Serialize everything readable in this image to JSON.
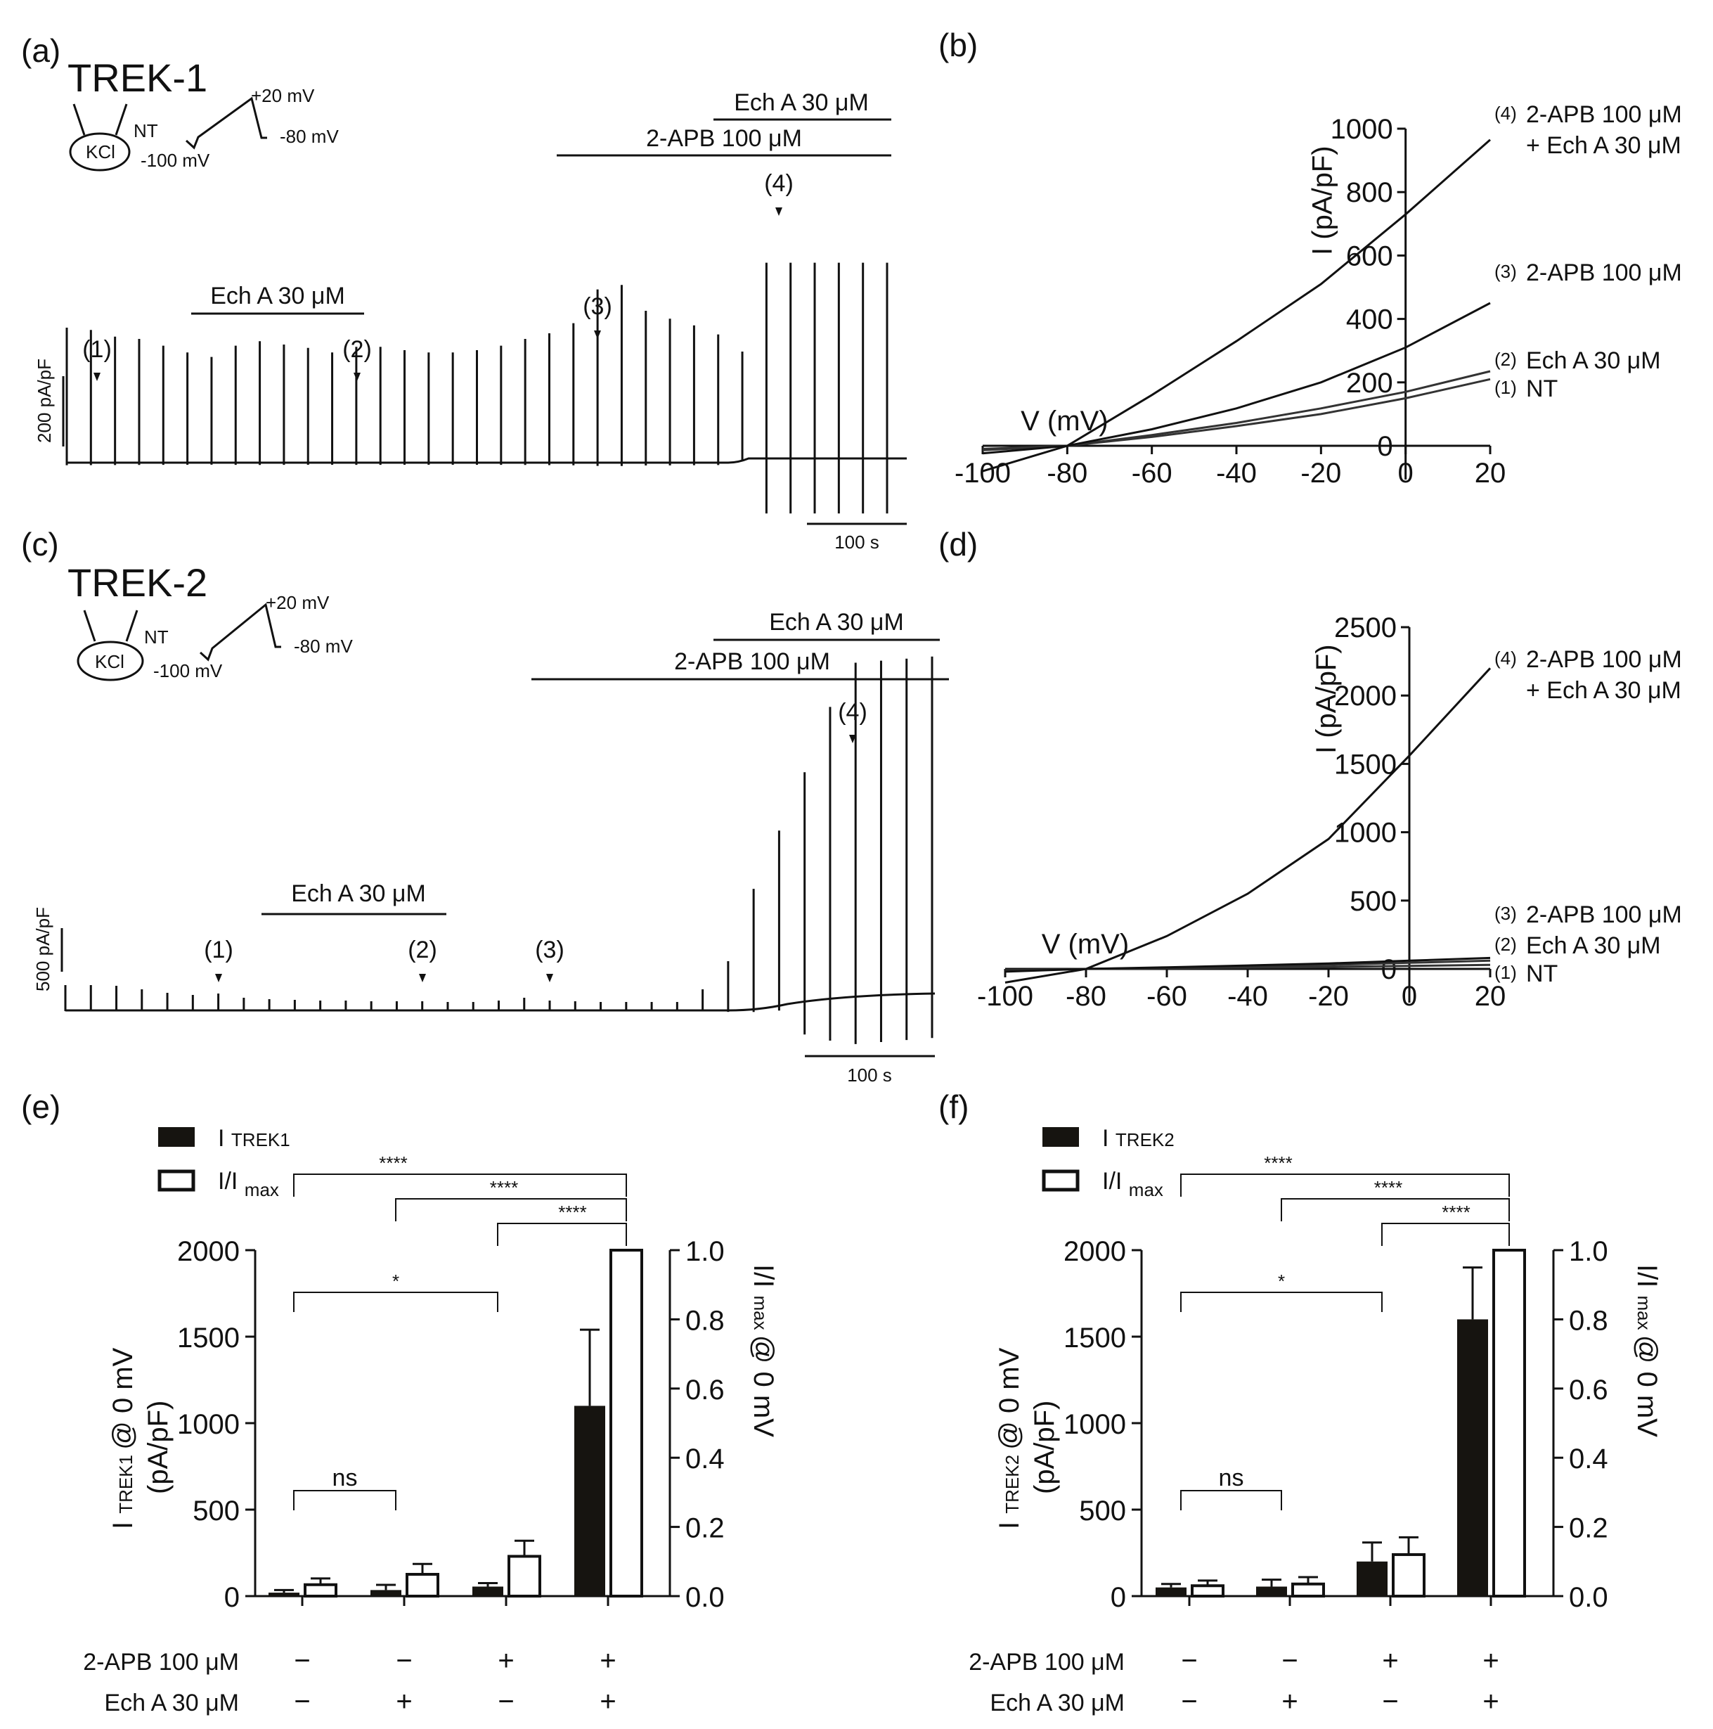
{
  "panels": {
    "a": "(a)",
    "b": "(b)",
    "c": "(c)",
    "d": "(d)",
    "e": "(e)",
    "f": "(f)"
  },
  "protocol": {
    "kcl": "KCl",
    "nt": "NT",
    "v_plus20": "+20 mV",
    "v_minus80": "-80 mV",
    "v_minus100": "-100 mV"
  },
  "trace_a": {
    "title": "TREK-1",
    "bar_ech": "Ech A 30 μM",
    "bar_apb": "2-APB 100 μM",
    "bar_ech2": "Ech A 30 μM",
    "markers": [
      "(1)",
      "(2)",
      "(3)",
      "(4)"
    ],
    "scale_y": "200 pA/pF",
    "scale_x": "100 s",
    "sweep_heights": [
      120,
      118,
      112,
      110,
      104,
      98,
      94,
      104,
      108,
      105,
      102,
      98,
      103,
      103,
      100,
      98,
      98,
      100,
      104,
      110,
      115,
      124,
      154,
      158,
      135,
      128,
      122,
      114,
      95,
      174,
      174,
      174,
      174,
      174,
      174
    ]
  },
  "trace_c": {
    "title": "TREK-2",
    "bar_ech": "Ech A 30 μM",
    "bar_apb": "2-APB 100 μM",
    "bar_ech2": "Ech A 30 μM",
    "markers": [
      "(1)",
      "(2)",
      "(3)",
      "(4)"
    ],
    "scale_y": "500 pA/pF",
    "scale_x": "100 s",
    "sweep_heights": [
      36,
      36,
      35,
      30,
      25,
      22,
      24,
      18,
      16,
      15,
      14,
      14,
      13,
      13,
      13,
      12,
      12,
      14,
      18,
      14,
      13,
      12,
      12,
      12,
      12,
      30,
      70,
      170,
      250,
      330,
      420,
      480,
      480,
      480,
      480
    ]
  },
  "chart_data": [
    {
      "id": "b",
      "type": "line",
      "xlabel": "V (mV)",
      "ylabel": "I (pA/pF)",
      "xlim": [
        -100,
        20
      ],
      "ylim": [
        0,
        1000
      ],
      "xticks": [
        "-100",
        "-80",
        "-60",
        "-40",
        "-20",
        "0",
        "20"
      ],
      "yticks": [
        "0",
        "200",
        "400",
        "600",
        "800",
        "1000"
      ],
      "series": [
        {
          "name": "(1) NT",
          "num": "(1)",
          "label": "NT",
          "x": [
            -100,
            -80,
            -60,
            -40,
            -20,
            0,
            20
          ],
          "y": [
            -10,
            0,
            28,
            62,
            100,
            150,
            210
          ]
        },
        {
          "name": "(2) Ech A 30 μM",
          "num": "(2)",
          "label": "Ech A 30 μM",
          "x": [
            -100,
            -80,
            -60,
            -40,
            -20,
            0,
            20
          ],
          "y": [
            -14,
            0,
            34,
            72,
            118,
            170,
            235
          ]
        },
        {
          "name": "(3) 2-APB 100 μM",
          "num": "(3)",
          "label": "2-APB 100 μM",
          "x": [
            -100,
            -80,
            -60,
            -40,
            -20,
            0,
            20
          ],
          "y": [
            -24,
            0,
            52,
            118,
            200,
            310,
            450
          ]
        },
        {
          "name": "(4) 2-APB 100 μM + Ech A 30 μM",
          "num": "(4)",
          "label": "2-APB 100 μM",
          "label2": "+ Ech A 30 μM",
          "x": [
            -100,
            -80,
            -60,
            -40,
            -20,
            0,
            20
          ],
          "y": [
            -80,
            0,
            160,
            330,
            510,
            730,
            965
          ]
        }
      ]
    },
    {
      "id": "d",
      "type": "line",
      "xlabel": "V (mV)",
      "ylabel": "I (pA/pF)",
      "xlim": [
        -100,
        20
      ],
      "ylim": [
        0,
        2500
      ],
      "xticks": [
        "-100",
        "-80",
        "-60",
        "-40",
        "-20",
        "0",
        "20"
      ],
      "yticks": [
        "0",
        "500",
        "1000",
        "1500",
        "2000",
        "2500"
      ],
      "series": [
        {
          "name": "(1) NT",
          "num": "(1)",
          "label": "NT",
          "x": [
            -100,
            -80,
            -60,
            -40,
            -20,
            0,
            20
          ],
          "y": [
            -10,
            0,
            5,
            10,
            15,
            22,
            30
          ]
        },
        {
          "name": "(2) Ech A 30 μM",
          "num": "(2)",
          "label": "Ech A 30 μM",
          "x": [
            -100,
            -80,
            -60,
            -40,
            -20,
            0,
            20
          ],
          "y": [
            -15,
            0,
            8,
            18,
            30,
            45,
            60
          ]
        },
        {
          "name": "(3) 2-APB 100 μM",
          "num": "(3)",
          "label": "2-APB 100 μM",
          "x": [
            -100,
            -80,
            -60,
            -40,
            -20,
            0,
            20
          ],
          "y": [
            -20,
            0,
            12,
            25,
            40,
            60,
            80
          ]
        },
        {
          "name": "(4) 2-APB 100 μM + Ech A 30 μM",
          "num": "(4)",
          "label": "2-APB 100 μM",
          "label2": "+ Ech A 30 μM",
          "x": [
            -100,
            -80,
            -60,
            -40,
            -20,
            0,
            20
          ],
          "y": [
            -100,
            0,
            240,
            550,
            950,
            1560,
            2200
          ]
        }
      ]
    },
    {
      "id": "e",
      "type": "bar",
      "legend": {
        "filled": "I",
        "filled_sub": "TREK1",
        "open": "I/I",
        "open_sub": "max"
      },
      "ylabel_left": "I",
      "ylabel_left_sub": "TREK1",
      "ylabel_left_rest": "@ 0 mV",
      "ylabel_left2": "(pA/pF)",
      "ylabel_right": "I/I",
      "ylabel_right_sub": "max",
      "ylabel_right_rest": "@ 0 mV",
      "ylim_left": [
        0,
        2000
      ],
      "ylim_right": [
        0,
        1.0
      ],
      "yticks_left": [
        "0",
        "500",
        "1000",
        "1500",
        "2000"
      ],
      "yticks_right": [
        "0.0",
        "0.2",
        "0.4",
        "0.6",
        "0.8",
        "1.0"
      ],
      "groups": 4,
      "filled": {
        "values": [
          20,
          35,
          55,
          1100
        ],
        "errors": [
          15,
          30,
          20,
          440
        ]
      },
      "open": {
        "values": [
          0.033,
          0.063,
          0.115,
          1.0
        ],
        "errors": [
          0.018,
          0.03,
          0.045,
          0
        ]
      },
      "row_labels": [
        "2-APB 100 μM",
        "Ech A 30 μM"
      ],
      "row1": [
        "−",
        "−",
        "+",
        "+"
      ],
      "row2": [
        "−",
        "+",
        "−",
        "+"
      ],
      "significance": [
        {
          "from": 0,
          "to": 3,
          "label": "****"
        },
        {
          "from": 1,
          "to": 3,
          "label": "****"
        },
        {
          "from": 2,
          "to": 3,
          "label": "****"
        },
        {
          "from": 0,
          "to": 2,
          "label": "*"
        },
        {
          "from": 0,
          "to": 1,
          "label": "ns"
        }
      ]
    },
    {
      "id": "f",
      "type": "bar",
      "legend": {
        "filled": "I",
        "filled_sub": "TREK2",
        "open": "I/I",
        "open_sub": "max"
      },
      "ylabel_left": "I",
      "ylabel_left_sub": "TREK2",
      "ylabel_left_rest": "@ 0 mV",
      "ylabel_left2": "(pA/pF)",
      "ylabel_right": "I/I",
      "ylabel_right_sub": "max",
      "ylabel_right_rest": "@ 0 mV",
      "ylim_left": [
        0,
        2000
      ],
      "ylim_right": [
        0,
        1.0
      ],
      "yticks_left": [
        "0",
        "500",
        "1000",
        "1500",
        "2000"
      ],
      "yticks_right": [
        "0.0",
        "0.2",
        "0.4",
        "0.6",
        "0.8",
        "1.0"
      ],
      "groups": 4,
      "filled": {
        "values": [
          50,
          55,
          200,
          1600
        ],
        "errors": [
          20,
          40,
          110,
          300
        ]
      },
      "open": {
        "values": [
          0.03,
          0.035,
          0.12,
          1.0
        ],
        "errors": [
          0.015,
          0.02,
          0.05,
          0
        ]
      },
      "row_labels": [
        "2-APB 100 μM",
        "Ech A 30 μM"
      ],
      "row1": [
        "−",
        "−",
        "+",
        "+"
      ],
      "row2": [
        "−",
        "+",
        "−",
        "+"
      ],
      "significance": [
        {
          "from": 0,
          "to": 3,
          "label": "****"
        },
        {
          "from": 1,
          "to": 3,
          "label": "****"
        },
        {
          "from": 2,
          "to": 3,
          "label": "****"
        },
        {
          "from": 0,
          "to": 2,
          "label": "*"
        },
        {
          "from": 0,
          "to": 1,
          "label": "ns"
        }
      ]
    }
  ]
}
